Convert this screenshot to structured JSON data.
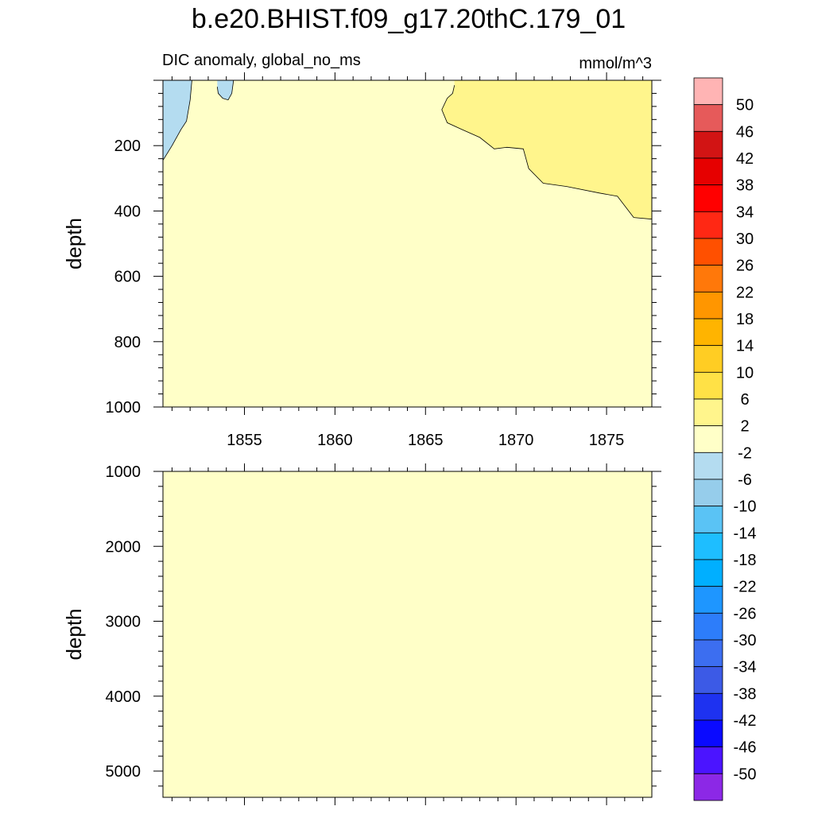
{
  "title": "b.e20.BHIST.f09_g17.20thC.179_01",
  "subtitle_left": "DIC anomaly, global_no_ms",
  "subtitle_right": "mmol/m^3",
  "chart_data": [
    {
      "type": "heatmap",
      "panel": "upper",
      "ylabel": "depth",
      "xlim": [
        1850.5,
        1877.5
      ],
      "ylim": [
        1000,
        0
      ],
      "yticks": [
        200,
        400,
        600,
        800,
        1000
      ],
      "xticks": [
        1855,
        1860,
        1865,
        1870,
        1875
      ],
      "background_level": "-2 to 2",
      "regions": [
        {
          "level": "-6 to -2",
          "color": "#b4dcf0",
          "points": [
            [
              1850.5,
              0
            ],
            [
              1852.1,
              0
            ],
            [
              1852.0,
              60
            ],
            [
              1851.8,
              125
            ],
            [
              1851.5,
              150
            ],
            [
              1851.0,
              200
            ],
            [
              1850.5,
              245
            ]
          ]
        },
        {
          "level": "-6 to -2",
          "color": "#b4dcf0",
          "points": [
            [
              1853.5,
              0
            ],
            [
              1854.4,
              0
            ],
            [
              1854.3,
              40
            ],
            [
              1854.1,
              60
            ],
            [
              1853.8,
              55
            ],
            [
              1853.55,
              40
            ],
            [
              1853.5,
              20
            ]
          ]
        },
        {
          "level": "2 to 6",
          "color": "#fff58c",
          "points": [
            [
              1866.6,
              0
            ],
            [
              1877.5,
              0
            ],
            [
              1877.5,
              425
            ],
            [
              1876.5,
              420
            ],
            [
              1875.6,
              355
            ],
            [
              1874.6,
              345
            ],
            [
              1872.8,
              325
            ],
            [
              1871.5,
              315
            ],
            [
              1870.7,
              270
            ],
            [
              1870.4,
              210
            ],
            [
              1869.5,
              205
            ],
            [
              1868.8,
              210
            ],
            [
              1868.0,
              175
            ],
            [
              1867.0,
              150
            ],
            [
              1866.2,
              130
            ],
            [
              1865.9,
              90
            ],
            [
              1866.2,
              55
            ],
            [
              1866.5,
              40
            ],
            [
              1866.6,
              15
            ]
          ]
        }
      ]
    },
    {
      "type": "heatmap",
      "panel": "lower",
      "ylabel": "depth",
      "xlim": [
        1850.5,
        1877.5
      ],
      "ylim": [
        5350,
        1000
      ],
      "yticks": [
        1000,
        2000,
        3000,
        4000,
        5000
      ],
      "background_level": "-2 to 2",
      "regions": []
    }
  ],
  "colorbar": {
    "labels": [
      "50",
      "46",
      "42",
      "38",
      "34",
      "30",
      "26",
      "22",
      "18",
      "14",
      "10",
      "6",
      "2",
      "-2",
      "-6",
      "-10",
      "-14",
      "-18",
      "-22",
      "-26",
      "-30",
      "-34",
      "-38",
      "-42",
      "-46",
      "-50"
    ],
    "colors": [
      "#ffb4b4",
      "#e65a5a",
      "#d21414",
      "#e60000",
      "#ff0000",
      "#ff2814",
      "#ff5000",
      "#ff780a",
      "#ff9600",
      "#ffb400",
      "#ffcd23",
      "#ffe146",
      "#fff58c",
      "#ffffc8",
      "#b4dcf0",
      "#96cdeb",
      "#5ac3f5",
      "#1ebeff",
      "#00afff",
      "#1e96ff",
      "#2d7dfa",
      "#3c6ef0",
      "#3c5ae6",
      "#1e32f0",
      "#0a0aff",
      "#4b14ff",
      "#8c28e6"
    ]
  },
  "colors": {
    "background_field": "#ffffc8"
  }
}
